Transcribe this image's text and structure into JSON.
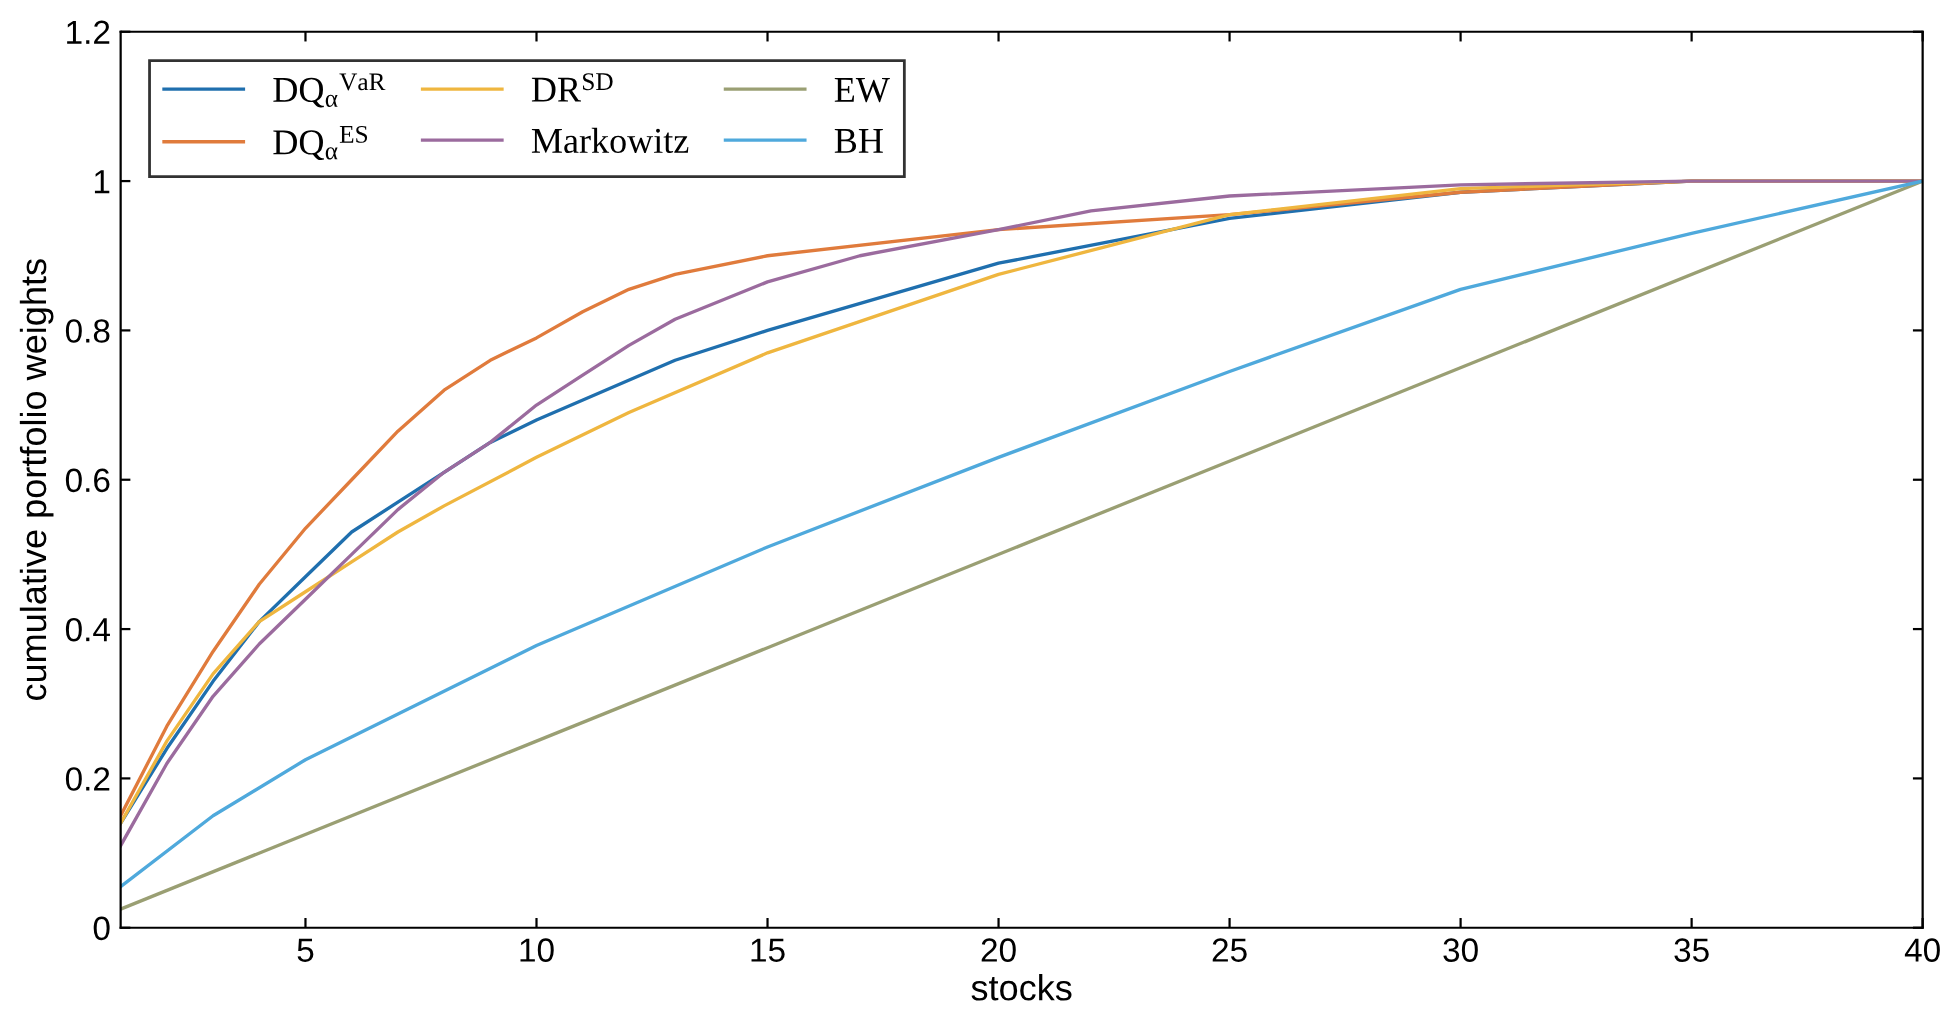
{
  "chart_data": {
    "type": "line",
    "xlabel": "stocks",
    "ylabel": "cumulative portfolio weights",
    "xlim": [
      1,
      40
    ],
    "ylim": [
      0,
      1.2
    ],
    "xticks": [
      5,
      10,
      15,
      20,
      25,
      30,
      35,
      40
    ],
    "yticks": [
      0,
      0.2,
      0.4,
      0.6,
      0.8,
      1,
      1.2
    ],
    "legend": "top left",
    "grid": false,
    "series": [
      {
        "name": "DQ$_{α}$$^{VaR}$",
        "color": "#1f6fae",
        "x": [
          1,
          2,
          3,
          4,
          5,
          6,
          7,
          8,
          9,
          10,
          13,
          15,
          20,
          25,
          30,
          35,
          40
        ],
        "values": [
          0.14,
          0.24,
          0.33,
          0.41,
          0.47,
          0.53,
          0.57,
          0.61,
          0.65,
          0.68,
          0.76,
          0.8,
          0.89,
          0.95,
          0.985,
          1,
          1
        ]
      },
      {
        "name": "DQ$_{α}$$^{ES}$",
        "color": "#e07b3c",
        "x": [
          1,
          2,
          3,
          4,
          5,
          6,
          7,
          8,
          9,
          10,
          11,
          12,
          13,
          15,
          20,
          25,
          30,
          35,
          40
        ],
        "values": [
          0.15,
          0.27,
          0.37,
          0.46,
          0.535,
          0.6,
          0.665,
          0.72,
          0.76,
          0.79,
          0.825,
          0.855,
          0.875,
          0.9,
          0.935,
          0.955,
          0.985,
          1,
          1
        ]
      },
      {
        "name": "DR$^{SD}$",
        "color": "#efb63f",
        "x": [
          1,
          2,
          3,
          4,
          5,
          6,
          7,
          8,
          10,
          12,
          15,
          20,
          25,
          30,
          35,
          40
        ],
        "values": [
          0.14,
          0.25,
          0.34,
          0.41,
          0.45,
          0.49,
          0.53,
          0.565,
          0.63,
          0.69,
          0.77,
          0.875,
          0.955,
          0.99,
          1,
          1
        ]
      },
      {
        "name": "Markowitz",
        "color": "#9b6b9e",
        "x": [
          1,
          2,
          3,
          4,
          5,
          6,
          7,
          8,
          9,
          10,
          11,
          12,
          13,
          15,
          17,
          20,
          22,
          25,
          30,
          35,
          40
        ],
        "values": [
          0.11,
          0.22,
          0.31,
          0.38,
          0.44,
          0.5,
          0.56,
          0.61,
          0.65,
          0.7,
          0.74,
          0.78,
          0.815,
          0.865,
          0.9,
          0.935,
          0.96,
          0.98,
          0.995,
          1,
          1
        ]
      },
      {
        "name": "EW",
        "color": "#9a9f73",
        "x": [
          1,
          40
        ],
        "values": [
          0.025,
          1
        ]
      },
      {
        "name": "BH",
        "color": "#4fa9dc",
        "x": [
          1,
          3,
          5,
          10,
          15,
          20,
          25,
          30,
          35,
          40
        ],
        "values": [
          0.055,
          0.15,
          0.225,
          0.378,
          0.51,
          0.63,
          0.745,
          0.855,
          0.93,
          1
        ]
      }
    ]
  }
}
